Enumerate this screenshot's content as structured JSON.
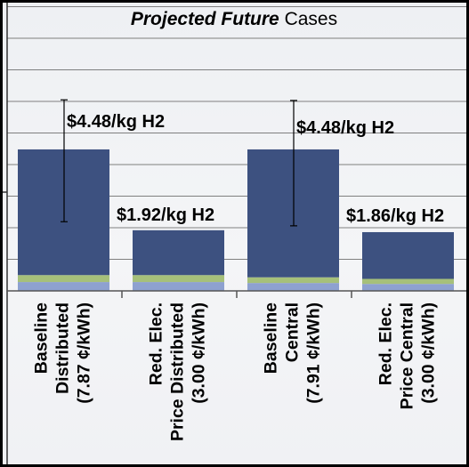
{
  "chart_data": {
    "type": "bar",
    "stacked": true,
    "title": "Projected Future Cases",
    "title_italic_part": "Projected Future",
    "title_plain_part": " Cases",
    "xlabel": "",
    "ylabel": "",
    "ylim": [
      0,
      9
    ],
    "grid": true,
    "legend": "none",
    "categories": [
      [
        "Baseline",
        "Distributed",
        "(7.87 ¢/kWh)"
      ],
      [
        "Red. Elec.",
        "Price Distributed",
        "(3.00 ¢/kWh)"
      ],
      [
        "Baseline",
        "Central",
        "(7.91 ¢/kWh)"
      ],
      [
        "Red. Elec.",
        "Price Central",
        "(3.00 ¢/kWh)"
      ]
    ],
    "series": [
      {
        "values": [
          0.28,
          0.28,
          0.25,
          0.22
        ],
        "color": "#8ea1d0"
      },
      {
        "values": [
          0.22,
          0.22,
          0.18,
          0.16
        ],
        "color": "#a6c07a"
      },
      {
        "values": [
          3.98,
          1.42,
          4.05,
          1.48
        ],
        "color": "#3d5180"
      }
    ],
    "totals": [
      4.48,
      1.92,
      4.48,
      1.86
    ],
    "data_labels": [
      "$4.48/kg H2",
      "$1.92/kg H2",
      "$4.48/kg H2",
      "$1.86/kg H2"
    ],
    "error_bars": [
      {
        "low": 2.19,
        "high": 6.05
      },
      null,
      {
        "low": 2.06,
        "high": 6.03
      },
      null
    ]
  }
}
